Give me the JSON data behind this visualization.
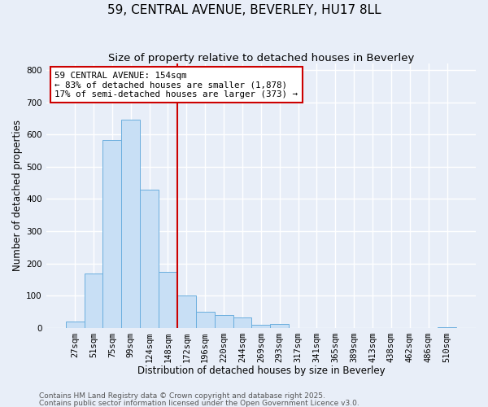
{
  "title": "59, CENTRAL AVENUE, BEVERLEY, HU17 8LL",
  "subtitle": "Size of property relative to detached houses in Beverley",
  "xlabel": "Distribution of detached houses by size in Beverley",
  "ylabel": "Number of detached properties",
  "footnote1": "Contains HM Land Registry data © Crown copyright and database right 2025.",
  "footnote2": "Contains public sector information licensed under the Open Government Licence v3.0.",
  "bin_labels": [
    "27sqm",
    "51sqm",
    "75sqm",
    "99sqm",
    "124sqm",
    "148sqm",
    "172sqm",
    "196sqm",
    "220sqm",
    "244sqm",
    "269sqm",
    "293sqm",
    "317sqm",
    "341sqm",
    "365sqm",
    "389sqm",
    "413sqm",
    "438sqm",
    "462sqm",
    "486sqm",
    "510sqm"
  ],
  "bar_values": [
    20,
    168,
    583,
    645,
    430,
    175,
    102,
    50,
    40,
    33,
    10,
    12,
    1,
    1,
    0,
    0,
    0,
    0,
    0,
    0,
    2
  ],
  "bar_color": "#c8dff5",
  "bar_edge_color": "#6aaede",
  "vline_x": 5.5,
  "vline_color": "#cc0000",
  "annotation_text": "59 CENTRAL AVENUE: 154sqm\n← 83% of detached houses are smaller (1,878)\n17% of semi-detached houses are larger (373) →",
  "annotation_box_color": "#ffffff",
  "annotation_box_edge": "#cc0000",
  "ylim": [
    0,
    820
  ],
  "yticks": [
    0,
    100,
    200,
    300,
    400,
    500,
    600,
    700,
    800
  ],
  "background_color": "#e8eef8",
  "plot_bg_color": "#e8eef8",
  "grid_color": "#ffffff",
  "title_fontsize": 11,
  "subtitle_fontsize": 9.5,
  "axis_label_fontsize": 8.5,
  "tick_fontsize": 7.5,
  "footnote_fontsize": 6.5
}
